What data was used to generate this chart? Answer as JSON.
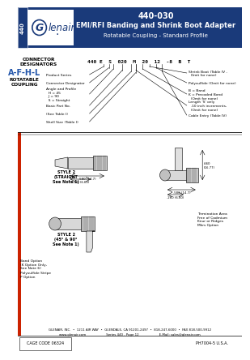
{
  "title_number": "440-030",
  "title_line1": "EMI/RFI Banding and Shrink Boot Adapter",
  "title_line2": "Rotatable Coupling - Standard Profile",
  "header_bg": "#1a3a7a",
  "header_text_color": "#ffffff",
  "series_label": "440",
  "part_number_example": "440 E  S  020  M  20  12  -8  B  T",
  "footer_line1": "GLENAIR, INC.  •  1211 AIR WAY  •  GLENDALE, CA 91201-2497  •  818-247-6000  •  FAX 818-500-9912",
  "footer_line2": "www.glenair.com                    Series 440 - Page 12                    E-Mail: sales@glenair.com",
  "header_bg_color": "#1a3a7a",
  "blue_text_color": "#2255aa",
  "red_color": "#cc2200",
  "body_bg": "#ffffff",
  "part_labels_left": [
    "Product Series",
    "Connector Designator",
    "Angle and Profile\n  H = 45\n  J = 90\n  S = Straight",
    "Basic Part No.",
    "(See Table I)",
    "Shell Size (Table I)"
  ],
  "part_labels_right": [
    "Shrink Boot (Table IV -\n  Omit for none)",
    "Polysulfide (Omit for none)",
    "B = Band\nK = Precoded Band\n  (Omit for none)",
    "Length 'S' only\n  .10 inch increments,\n  (Omit for none)",
    "Cable Entry (Table IV)"
  ],
  "style2_straight_label": "STYLE 2\n(STRAIGHT\nSee Note 1)",
  "style2_angle_label": "STYLE 2\n(45° & 90°\nSee Note 1)",
  "band_option_label": "Band Option\n(K Option Only,\nSee Note 6)",
  "polysulfide_label": "Polysulfide Stripe\nP Option",
  "termination_label": "Termination Area\nFree of Cadmium\nKnur or Ridges\nMkrs Option",
  "cage_code": "CAGE CODE 06324",
  "drawing_number": "PH7004-5 U.S.A."
}
